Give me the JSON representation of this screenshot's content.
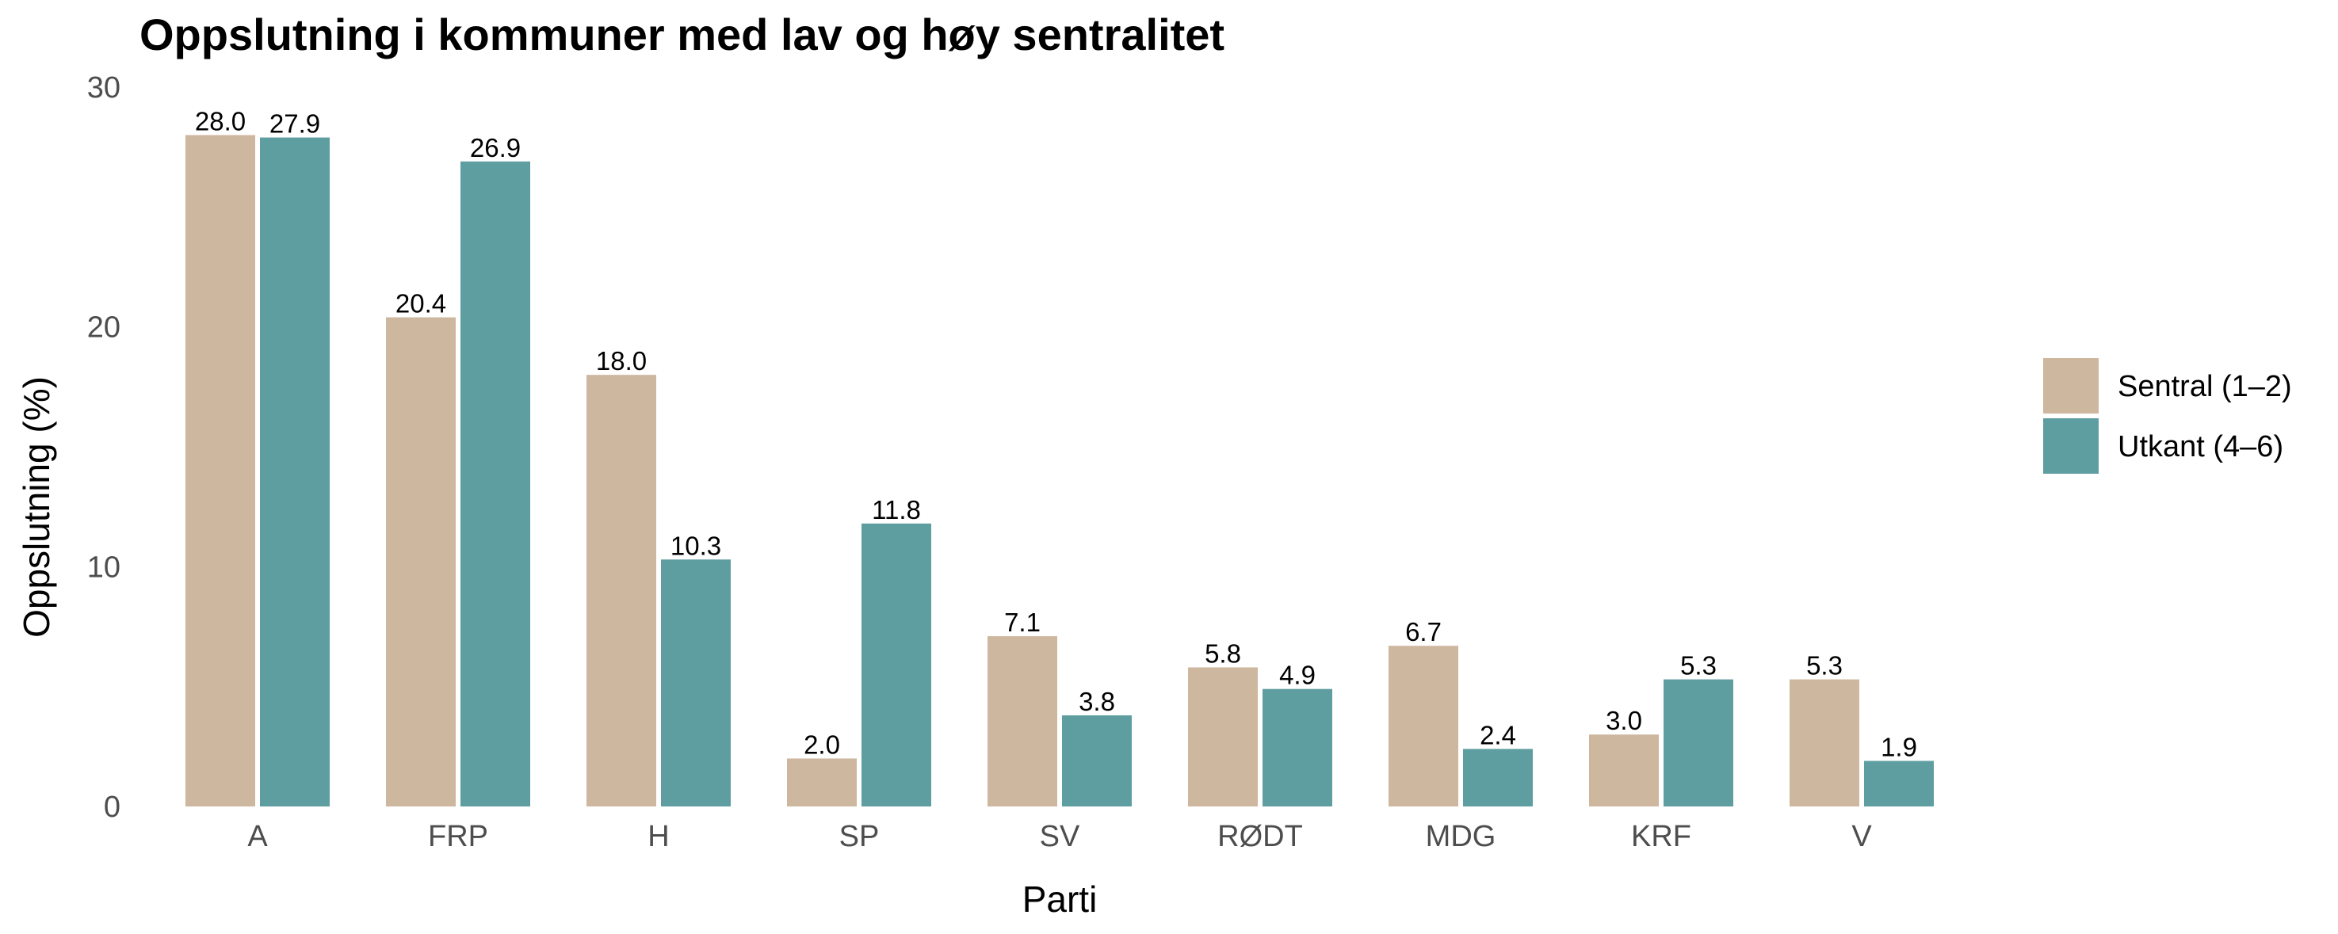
{
  "chart_data": {
    "type": "bar",
    "title": "Oppslutning i kommuner med lav og høy sentralitet",
    "xlabel": "Parti",
    "ylabel": "Oppslutning (%)",
    "categories": [
      "A",
      "FRP",
      "H",
      "SP",
      "SV",
      "RØDT",
      "MDG",
      "KRF",
      "V"
    ],
    "series": [
      {
        "name": "Sentral (1–2)",
        "color": "#cdb79e",
        "values": [
          28.0,
          20.4,
          18.0,
          2.0,
          7.1,
          5.8,
          6.7,
          3.0,
          5.3
        ],
        "labels": [
          "28.0",
          "20.4",
          "18.0",
          "2.0",
          "7.1",
          "5.8",
          "6.7",
          "3.0",
          "5.3"
        ]
      },
      {
        "name": "Utkant (4–6)",
        "color": "#5f9ea0",
        "values": [
          27.9,
          26.9,
          10.3,
          11.8,
          3.8,
          4.9,
          2.4,
          5.3,
          1.9
        ],
        "labels": [
          "27.9",
          "26.9",
          "10.3",
          "11.8",
          "3.8",
          "4.9",
          "2.4",
          "5.3",
          "1.9"
        ]
      }
    ],
    "ylim": [
      0,
      30
    ],
    "yticks": [
      0,
      10,
      20,
      30
    ],
    "ytick_labels": [
      "0",
      "10",
      "20",
      "30"
    ],
    "grid": false,
    "legend_position": "right"
  }
}
